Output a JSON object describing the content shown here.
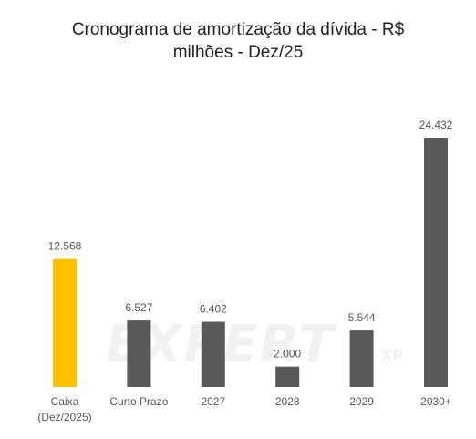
{
  "chart_data": {
    "type": "bar",
    "title": "Cronograma de amortização da dívida - R$ milhões - Dez/25",
    "title_lines": [
      "Cronograma de amortização da dívida - R$",
      "milhões - Dez/25"
    ],
    "categories": [
      [
        "Caixa",
        "(Dez/2025)"
      ],
      [
        "Curto Prazo"
      ],
      [
        "2027"
      ],
      [
        "2028"
      ],
      [
        "2029"
      ],
      [
        "2030+"
      ]
    ],
    "values": [
      12568,
      6527,
      6402,
      2000,
      5544,
      24432
    ],
    "value_labels": [
      "12.568",
      "6.527",
      "6.402",
      "2.000",
      "5.544",
      "24.432"
    ],
    "bar_colors": [
      "#FFC000",
      "#595959",
      "#595959",
      "#595959",
      "#595959",
      "#595959"
    ],
    "ylim": [
      0,
      24432
    ],
    "grid": false,
    "legend": "none"
  },
  "watermark": {
    "text": "EXPERT",
    "sub": "XP"
  }
}
